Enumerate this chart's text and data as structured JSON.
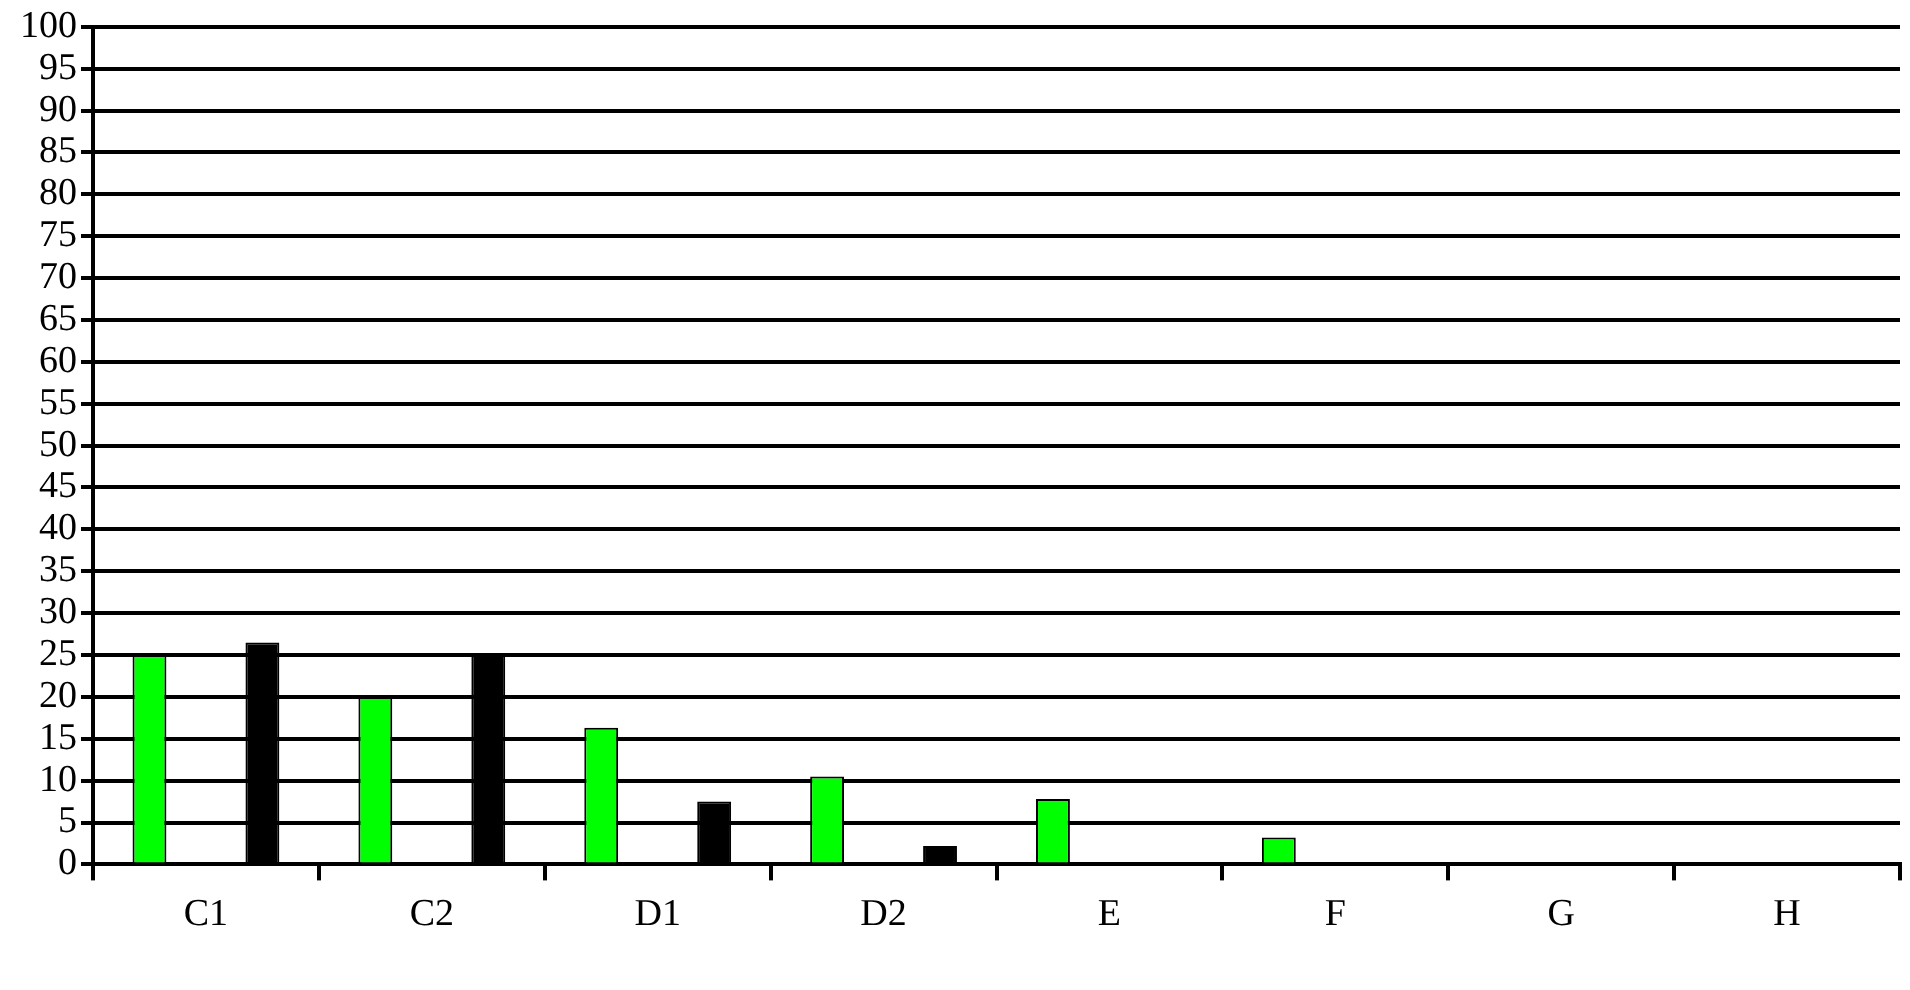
{
  "chart_data": {
    "type": "bar",
    "categories": [
      "C1",
      "C2",
      "D1",
      "D2",
      "E",
      "F",
      "G",
      "H"
    ],
    "series": [
      {
        "color": "#00ff00",
        "values": [
          25,
          20,
          16.3,
          10.5,
          7.8,
          3.2,
          0,
          0
        ]
      },
      {
        "color": "#000000",
        "values": [
          26.5,
          25,
          7.5,
          2.2,
          0,
          0,
          0,
          0
        ]
      }
    ],
    "ylim": [
      0,
      100
    ],
    "yticks": [
      0,
      5,
      10,
      15,
      20,
      25,
      30,
      35,
      40,
      45,
      50,
      55,
      60,
      65,
      70,
      75,
      80,
      85,
      90,
      95,
      100
    ],
    "grid": "y",
    "legend": false
  }
}
